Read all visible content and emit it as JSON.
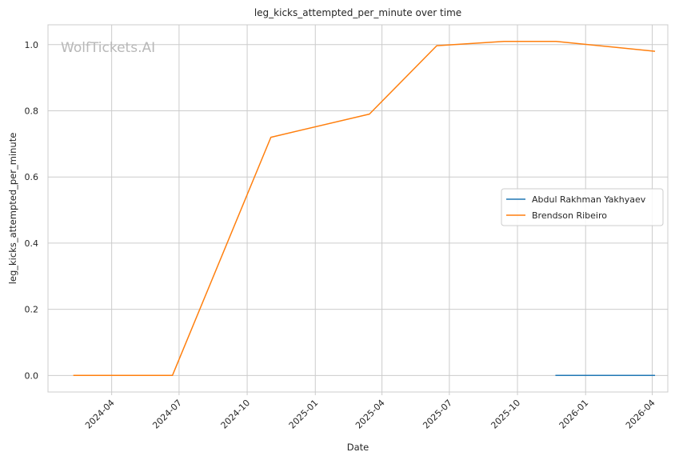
{
  "chart_data": {
    "type": "line",
    "title": "leg_kicks_attempted_per_minute over time",
    "xlabel": "Date",
    "ylabel": "leg_kicks_attempted_per_minute",
    "watermark": "WolfTickets.AI",
    "grid": true,
    "legend_position": "center-right",
    "xlim": [
      "2024-01-06",
      "2026-04-22"
    ],
    "ylim": [
      -0.05,
      1.06
    ],
    "x_ticks": [
      "2024-04",
      "2024-07",
      "2024-10",
      "2025-01",
      "2025-04",
      "2025-07",
      "2025-10",
      "2026-01",
      "2026-04"
    ],
    "y_ticks": [
      "0.0",
      "0.2",
      "0.4",
      "0.6",
      "0.8",
      "1.0"
    ],
    "series": [
      {
        "name": "Abdul Rakhman Yakhyaev",
        "color": "#1f77b4",
        "x": [
          "2025-11-22",
          "2026-04-04"
        ],
        "y": [
          0.0,
          0.0
        ]
      },
      {
        "name": "Brendson Ribeiro",
        "color": "#ff7f0e",
        "x": [
          "2024-02-10",
          "2024-06-22",
          "2024-11-02",
          "2025-03-15",
          "2025-06-14",
          "2025-09-13",
          "2025-11-22",
          "2026-04-04"
        ],
        "y": [
          0.0,
          0.0,
          0.72,
          0.79,
          0.997,
          1.01,
          1.01,
          0.98
        ]
      }
    ]
  }
}
